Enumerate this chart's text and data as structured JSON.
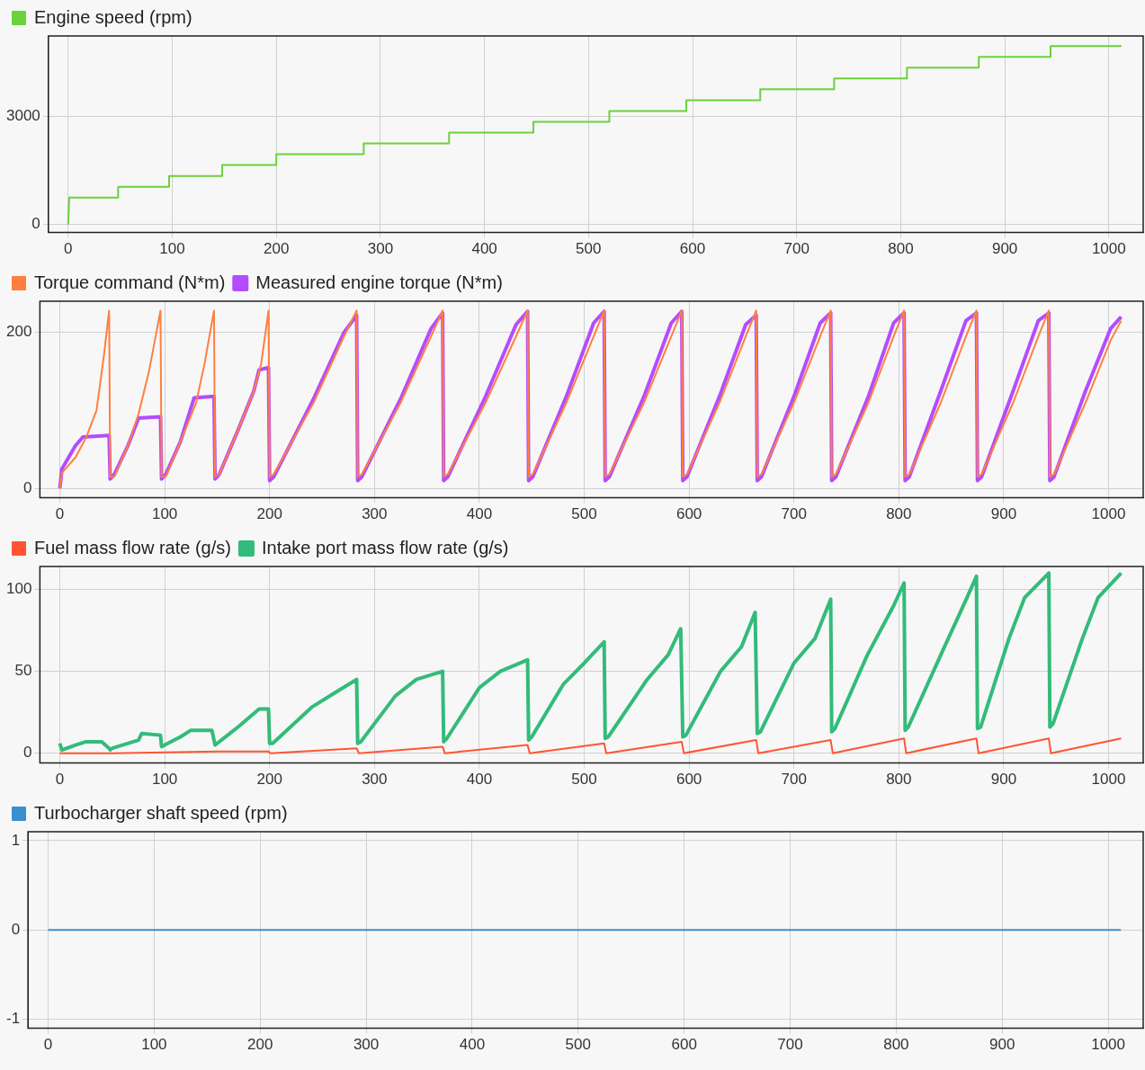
{
  "chart_data": [
    {
      "type": "line",
      "xlim": [
        -19,
        1033
      ],
      "xticks": [
        0,
        100,
        200,
        300,
        400,
        500,
        600,
        700,
        800,
        900,
        1000
      ],
      "ylim": [
        -220,
        5230
      ],
      "yticks": [
        0,
        3000
      ],
      "grid": true,
      "legend": "top left",
      "series": [
        {
          "name": "Engine speed (rpm)",
          "color": "#6ad23c",
          "x": [
            0,
            1,
            48,
            48,
            97,
            97,
            148,
            148,
            200,
            200,
            284,
            284,
            366,
            366,
            447,
            447,
            520,
            520,
            594,
            594,
            665,
            665,
            736,
            736,
            806,
            806,
            875,
            875,
            944,
            944,
            1012
          ],
          "values": [
            0,
            750,
            750,
            1050,
            1050,
            1350,
            1350,
            1650,
            1650,
            1950,
            1950,
            2250,
            2250,
            2550,
            2550,
            2850,
            2850,
            3150,
            3150,
            3450,
            3450,
            3750,
            3750,
            4050,
            4050,
            4350,
            4350,
            4650,
            4650,
            4950,
            4950
          ]
        }
      ]
    },
    {
      "type": "line",
      "xlim": [
        -19,
        1033
      ],
      "xticks": [
        0,
        100,
        200,
        300,
        400,
        500,
        600,
        700,
        800,
        900,
        1000
      ],
      "ylim": [
        -12,
        240
      ],
      "yticks": [
        0,
        200
      ],
      "grid": true,
      "legend": "top left",
      "series": [
        {
          "name": "Torque command (N*m)",
          "color": "#ff7f3f",
          "x": [
            0,
            2,
            15,
            25,
            35,
            42,
            47,
            48,
            52,
            65,
            75,
            85,
            96,
            97,
            101,
            115,
            130,
            138,
            147,
            148,
            152,
            170,
            185,
            192,
            199,
            200,
            204,
            242,
            271,
            283,
            284,
            288,
            325,
            354,
            365,
            366,
            370,
            406,
            435,
            446,
            447,
            451,
            483,
            509,
            519,
            520,
            524,
            557,
            583,
            593,
            594,
            598,
            629,
            654,
            664,
            665,
            669,
            700,
            725,
            735,
            736,
            740,
            771,
            795,
            805,
            806,
            810,
            840,
            864,
            874,
            875,
            879,
            909,
            933,
            943,
            944,
            948,
            978,
            1002,
            1012
          ],
          "values": [
            0,
            20,
            40,
            65,
            100,
            170,
            228,
            15,
            15,
            55,
            95,
            150,
            228,
            15,
            15,
            60,
            110,
            160,
            228,
            15,
            18,
            75,
            125,
            160,
            228,
            15,
            18,
            110,
            195,
            228,
            15,
            18,
            110,
            195,
            228,
            15,
            18,
            110,
            195,
            228,
            15,
            18,
            110,
            195,
            228,
            15,
            18,
            110,
            195,
            228,
            15,
            18,
            110,
            195,
            228,
            15,
            18,
            110,
            195,
            228,
            15,
            18,
            110,
            195,
            228,
            15,
            18,
            110,
            195,
            228,
            15,
            18,
            110,
            195,
            228,
            15,
            18,
            110,
            190,
            215
          ]
        },
        {
          "name": "Measured engine torque (N*m)",
          "color": "#b44cff",
          "x": [
            0,
            2,
            15,
            22,
            47,
            48,
            52,
            65,
            75,
            96,
            97,
            101,
            115,
            128,
            147,
            148,
            152,
            170,
            185,
            190,
            199,
            200,
            204,
            242,
            271,
            283,
            284,
            288,
            325,
            354,
            365,
            366,
            370,
            406,
            435,
            446,
            447,
            451,
            483,
            509,
            519,
            520,
            524,
            557,
            583,
            593,
            594,
            598,
            629,
            654,
            664,
            665,
            669,
            700,
            725,
            735,
            736,
            740,
            771,
            795,
            805,
            806,
            810,
            840,
            864,
            874,
            875,
            879,
            909,
            933,
            943,
            944,
            948,
            978,
            1002,
            1012
          ],
          "values": [
            0,
            25,
            55,
            66,
            68,
            12,
            18,
            55,
            90,
            92,
            12,
            18,
            60,
            116,
            118,
            12,
            18,
            75,
            125,
            152,
            155,
            10,
            15,
            115,
            200,
            222,
            10,
            15,
            115,
            205,
            225,
            10,
            15,
            118,
            210,
            227,
            10,
            15,
            118,
            212,
            227,
            10,
            15,
            118,
            212,
            227,
            10,
            15,
            118,
            210,
            222,
            10,
            15,
            118,
            212,
            225,
            10,
            15,
            118,
            212,
            225,
            10,
            15,
            125,
            215,
            225,
            10,
            15,
            125,
            215,
            225,
            10,
            15,
            125,
            205,
            220
          ]
        }
      ]
    },
    {
      "type": "line",
      "xlim": [
        -19,
        1033
      ],
      "xticks": [
        0,
        100,
        200,
        300,
        400,
        500,
        600,
        700,
        800,
        900,
        1000
      ],
      "ylim": [
        -6,
        114
      ],
      "yticks": [
        0,
        50,
        100
      ],
      "grid": true,
      "legend": "top left",
      "series": [
        {
          "name": "Fuel mass flow rate (g/s)",
          "color": "#ff5533",
          "x": [
            0,
            50,
            150,
            199,
            201,
            283,
            285,
            365,
            367,
            446,
            448,
            519,
            521,
            593,
            595,
            664,
            666,
            735,
            737,
            805,
            807,
            874,
            876,
            943,
            945,
            1012
          ],
          "values": [
            0,
            0,
            1,
            1,
            0,
            3,
            0,
            4,
            0,
            5,
            0,
            6,
            0,
            7,
            0,
            8,
            0,
            8,
            0,
            9,
            0,
            9,
            0,
            9,
            0,
            9
          ]
        },
        {
          "name": "Intake port mass flow rate (g/s)",
          "color": "#33bb7a",
          "x": [
            0,
            2,
            15,
            25,
            40,
            47,
            48,
            50,
            75,
            78,
            96,
            97,
            100,
            115,
            125,
            145,
            148,
            150,
            170,
            190,
            199,
            200,
            203,
            240,
            265,
            283,
            284,
            287,
            320,
            340,
            365,
            366,
            369,
            400,
            420,
            446,
            447,
            450,
            480,
            500,
            519,
            520,
            523,
            560,
            580,
            592,
            594,
            597,
            630,
            650,
            663,
            665,
            668,
            700,
            720,
            735,
            736,
            739,
            770,
            795,
            805,
            806,
            809,
            840,
            865,
            874,
            875,
            878,
            905,
            920,
            943,
            944,
            947,
            975,
            990,
            1012
          ],
          "values": [
            6,
            2,
            5,
            7,
            7,
            3,
            2,
            3,
            8,
            12,
            11,
            4,
            5,
            10,
            14,
            14,
            5,
            6,
            16,
            27,
            27,
            6,
            6,
            28,
            38,
            45,
            6,
            7,
            35,
            45,
            50,
            7,
            9,
            40,
            50,
            57,
            8,
            10,
            42,
            55,
            68,
            9,
            10,
            45,
            60,
            76,
            10,
            11,
            50,
            65,
            86,
            12,
            13,
            55,
            70,
            94,
            13,
            15,
            60,
            90,
            104,
            14,
            16,
            60,
            95,
            108,
            15,
            16,
            70,
            95,
            110,
            16,
            18,
            70,
            95,
            110
          ]
        }
      ]
    },
    {
      "type": "line",
      "xlim": [
        -19,
        1033
      ],
      "xticks": [
        0,
        100,
        200,
        300,
        400,
        500,
        600,
        700,
        800,
        900,
        1000
      ],
      "ylim": [
        -1.1,
        1.1
      ],
      "yticks": [
        -1,
        0,
        1
      ],
      "grid": true,
      "legend": "top left",
      "series": [
        {
          "name": "Turbocharger shaft speed (rpm)",
          "color": "#3a8fd0",
          "x": [
            0,
            1012
          ],
          "values": [
            0,
            0
          ]
        }
      ]
    }
  ]
}
